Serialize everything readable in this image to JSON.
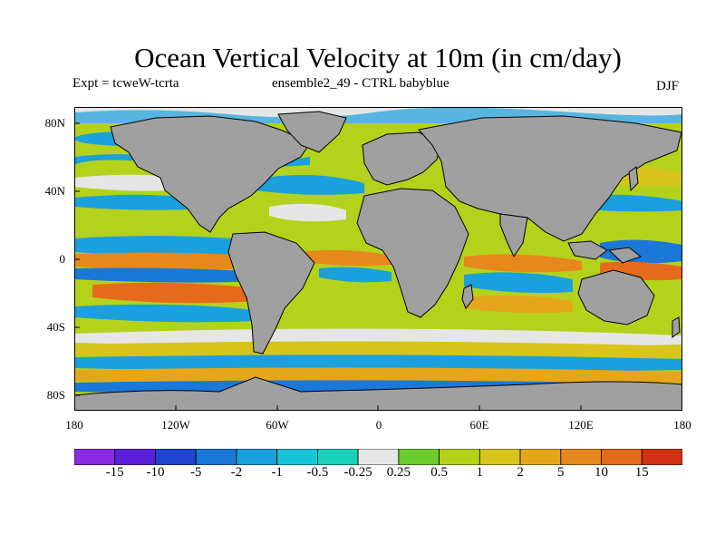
{
  "title": "Ocean Vertical Velocity at 10m (in cm/day)",
  "subtitle_left": "Expt = tcweW-tcrta",
  "subtitle_center": "ensemble2_49 - CTRL babyblue",
  "season": "DJF",
  "lat_ticks": [
    "80N",
    "40N",
    "0",
    "40S",
    "80S"
  ],
  "lon_ticks": [
    "180",
    "120W",
    "60W",
    "0",
    "60E",
    "120E",
    "180"
  ],
  "colorbar": {
    "labels": [
      "-15",
      "-10",
      "-5",
      "-2",
      "-1",
      "-0.5",
      "-0.25",
      "0.25",
      "0.5",
      "1",
      "2",
      "5",
      "10",
      "15"
    ],
    "colors": [
      "#8a2be2",
      "#5a1fd6",
      "#1f45d0",
      "#1a78d8",
      "#1aa0dc",
      "#1ac4d8",
      "#1ad0b8",
      "#e6e6e6",
      "#6ccd2c",
      "#b4d21c",
      "#d8c41c",
      "#e6a61c",
      "#e6881c",
      "#e66a1c",
      "#d23214"
    ]
  },
  "colors": {
    "land": "#a0a0a0",
    "coast": "#000000"
  }
}
